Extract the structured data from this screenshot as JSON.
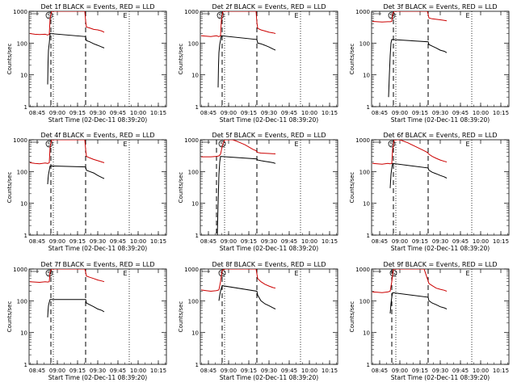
{
  "chart_data": {
    "type": "line",
    "x_tick_labels": [
      "08:45",
      "09:00",
      "09:15",
      "09:30",
      "09:45",
      "10:00",
      "10:15"
    ],
    "x_range_hours": [
      8.65,
      10.35
    ],
    "xlabel": "Start Time (02-Dec-11 08:39:20)",
    "ylabel": "Counts/sec",
    "y_scale": "log",
    "ylim": [
      1,
      1000
    ],
    "y_tick_labels": [
      "1",
      "10",
      "100",
      "1000"
    ],
    "grid": false,
    "colors": {
      "events": "#000000",
      "lld": "#cc0000",
      "axes": "#000000"
    },
    "markers": {
      "start_marker": "S",
      "end_marker": "E"
    },
    "panels": [
      {
        "title": "Det 1f BLACK = Events, RED = LLD",
        "markers_x": [
          8.9,
          9.84
        ],
        "vlines_dotted": [
          8.95,
          9.89
        ],
        "vlines_dashed": [
          8.92,
          9.35
        ],
        "lld": {
          "x": [
            8.66,
            8.72,
            8.78,
            8.85,
            8.88,
            8.9,
            8.91,
            8.93,
            8.95,
            9.34,
            9.35,
            9.36,
            9.4,
            9.45,
            9.5,
            9.55,
            9.58
          ],
          "y": [
            200,
            190,
            185,
            190,
            180,
            190,
            600,
            1000,
            1000,
            1000,
            500,
            320,
            300,
            270,
            260,
            240,
            220
          ]
        },
        "events": {
          "x": [
            8.88,
            8.885,
            8.89,
            8.9,
            8.91,
            9.35,
            9.36,
            9.4,
            9.45,
            9.5,
            9.55,
            9.58
          ],
          "y": [
            5,
            25,
            60,
            100,
            200,
            160,
            120,
            110,
            95,
            85,
            75,
            70
          ]
        }
      },
      {
        "title": "Det 2f BLACK = Events, RED = LLD",
        "markers_x": [
          8.9,
          9.84
        ],
        "vlines_dotted": [
          8.95,
          9.89
        ],
        "vlines_dashed": [
          8.92,
          9.35
        ],
        "lld": {
          "x": [
            8.66,
            8.72,
            8.78,
            8.85,
            8.88,
            8.9,
            8.91,
            8.93,
            8.95,
            9.34,
            9.35,
            9.36,
            9.4,
            9.45,
            9.5,
            9.55,
            9.58
          ],
          "y": [
            170,
            165,
            160,
            170,
            160,
            170,
            500,
            1000,
            1000,
            1000,
            450,
            290,
            260,
            240,
            220,
            210,
            200
          ]
        },
        "events": {
          "x": [
            8.87,
            8.875,
            8.88,
            8.89,
            8.91,
            9.35,
            9.36,
            9.4,
            9.45,
            9.5,
            9.55,
            9.58
          ],
          "y": [
            4,
            20,
            50,
            90,
            170,
            130,
            100,
            95,
            85,
            75,
            65,
            60
          ]
        }
      },
      {
        "title": "Det 3f BLACK = Events, RED = LLD",
        "markers_x": [
          8.9,
          9.84
        ],
        "vlines_dotted": [
          8.95,
          9.89
        ],
        "vlines_dashed": [
          8.92,
          9.35
        ],
        "lld": {
          "x": [
            8.66,
            8.72,
            8.78,
            8.85,
            8.88,
            8.9,
            8.91,
            8.93,
            8.95,
            9.34,
            9.35,
            9.36,
            9.4,
            9.45,
            9.5,
            9.55,
            9.58
          ],
          "y": [
            480,
            470,
            460,
            470,
            470,
            480,
            800,
            1000,
            1000,
            1000,
            800,
            620,
            580,
            560,
            540,
            520,
            500
          ]
        },
        "events": {
          "x": [
            8.86,
            8.87,
            8.88,
            8.89,
            8.9,
            9.35,
            9.36,
            9.4,
            9.45,
            9.5,
            9.55,
            9.58
          ],
          "y": [
            2,
            10,
            40,
            100,
            130,
            110,
            90,
            80,
            70,
            60,
            55,
            50
          ]
        }
      },
      {
        "title": "Det 4f BLACK = Events, RED = LLD",
        "markers_x": [
          8.9,
          9.84
        ],
        "vlines_dotted": [
          8.95,
          9.89
        ],
        "vlines_dashed": [
          8.92,
          9.35
        ],
        "lld": {
          "x": [
            8.66,
            8.72,
            8.78,
            8.85,
            8.88,
            8.9,
            8.91,
            8.93,
            8.95,
            9.34,
            9.35,
            9.36,
            9.4,
            9.45,
            9.5,
            9.55,
            9.58
          ],
          "y": [
            190,
            180,
            175,
            185,
            180,
            190,
            600,
            1000,
            1000,
            1000,
            500,
            300,
            270,
            240,
            220,
            200,
            190
          ]
        },
        "events": {
          "x": [
            8.88,
            8.885,
            8.89,
            8.9,
            8.91,
            9.35,
            9.36,
            9.4,
            9.45,
            9.5,
            9.55,
            9.58
          ],
          "y": [
            40,
            60,
            80,
            110,
            150,
            140,
            110,
            100,
            90,
            75,
            65,
            60
          ]
        }
      },
      {
        "title": "Det 5f BLACK = Events, RED = LLD",
        "markers_x": [
          8.92,
          9.84
        ],
        "vlines_dotted": [
          8.95,
          9.89
        ],
        "vlines_dashed": [
          8.85,
          9.35
        ],
        "lld": {
          "x": [
            8.66,
            8.72,
            8.78,
            8.85,
            8.88,
            8.9,
            8.92,
            8.95,
            9.0,
            9.05,
            9.1,
            9.2,
            9.3,
            9.34,
            9.36,
            9.4,
            9.5,
            9.58
          ],
          "y": [
            290,
            290,
            290,
            300,
            310,
            350,
            600,
            1000,
            1000,
            1000,
            900,
            700,
            500,
            450,
            400,
            380,
            370,
            360
          ]
        },
        "events": {
          "x": [
            8.86,
            8.87,
            8.88,
            8.89,
            8.9,
            9.35,
            9.36,
            9.4,
            9.45,
            9.5,
            9.55,
            9.58
          ],
          "y": [
            1,
            10,
            80,
            200,
            300,
            250,
            230,
            220,
            210,
            200,
            190,
            180
          ]
        }
      },
      {
        "title": "Det 6f BLACK = Events, RED = LLD",
        "markers_x": [
          8.9,
          9.84
        ],
        "vlines_dotted": [
          8.95,
          9.89
        ],
        "vlines_dashed": [
          8.92,
          9.35
        ],
        "lld": {
          "x": [
            8.66,
            8.72,
            8.78,
            8.85,
            8.88,
            8.9,
            8.91,
            8.93,
            8.95,
            9.0,
            9.1,
            9.2,
            9.3,
            9.34,
            9.36,
            9.4,
            9.45,
            9.5,
            9.55,
            9.58
          ],
          "y": [
            180,
            175,
            170,
            180,
            175,
            180,
            500,
            1000,
            1000,
            1000,
            800,
            600,
            450,
            400,
            350,
            300,
            260,
            230,
            210,
            200
          ]
        },
        "events": {
          "x": [
            8.88,
            8.885,
            8.89,
            8.9,
            8.91,
            9.35,
            9.36,
            9.4,
            9.45,
            9.5,
            9.55,
            9.58
          ],
          "y": [
            30,
            50,
            80,
            130,
            180,
            130,
            110,
            95,
            85,
            75,
            68,
            62
          ]
        }
      },
      {
        "title": "Det 7f BLACK = Events, RED = LLD",
        "markers_x": [
          8.9,
          9.84
        ],
        "vlines_dotted": [
          8.95,
          9.89
        ],
        "vlines_dashed": [
          8.92,
          9.35
        ],
        "lld": {
          "x": [
            8.66,
            8.72,
            8.78,
            8.85,
            8.88,
            8.9,
            8.91,
            8.93,
            8.95,
            9.34,
            9.35,
            9.36,
            9.4,
            9.45,
            9.5,
            9.55,
            9.58
          ],
          "y": [
            400,
            390,
            380,
            400,
            390,
            400,
            800,
            1000,
            1000,
            1000,
            800,
            600,
            550,
            500,
            450,
            420,
            400
          ]
        },
        "events": {
          "x": [
            8.88,
            8.885,
            8.89,
            8.9,
            8.91,
            9.35,
            9.36,
            9.4,
            9.45,
            9.5,
            9.55,
            9.58
          ],
          "y": [
            30,
            50,
            70,
            90,
            110,
            110,
            85,
            75,
            65,
            55,
            50,
            45
          ]
        }
      },
      {
        "title": "Det 8f BLACK = Events, RED = LLD",
        "markers_x": [
          8.92,
          9.84
        ],
        "vlines_dotted": [
          8.95,
          9.89
        ],
        "vlines_dashed": [
          8.92,
          9.35
        ],
        "lld": {
          "x": [
            8.66,
            8.72,
            8.78,
            8.85,
            8.88,
            8.9,
            8.92,
            8.95,
            9.34,
            9.35,
            9.36,
            9.4,
            9.45,
            9.5,
            9.55,
            9.58
          ],
          "y": [
            220,
            210,
            200,
            210,
            220,
            400,
            900,
            1000,
            1000,
            700,
            500,
            400,
            330,
            290,
            260,
            250
          ]
        },
        "events": {
          "x": [
            8.88,
            8.89,
            8.9,
            8.92,
            9.35,
            9.36,
            9.4,
            9.45,
            9.5,
            9.55,
            9.58
          ],
          "y": [
            100,
            150,
            200,
            300,
            200,
            150,
            100,
            80,
            70,
            60,
            55
          ]
        }
      },
      {
        "title": "Det 9f BLACK = Events, RED = LLD",
        "markers_x": [
          8.92,
          9.84
        ],
        "vlines_dotted": [
          8.95,
          9.89
        ],
        "vlines_dashed": [
          8.9,
          9.35
        ],
        "lld": {
          "x": [
            8.66,
            8.72,
            8.78,
            8.85,
            8.88,
            8.9,
            8.92,
            8.95,
            9.3,
            9.34,
            9.36,
            9.4,
            9.45,
            9.5,
            9.55,
            9.58
          ],
          "y": [
            190,
            185,
            180,
            190,
            200,
            400,
            1000,
            1000,
            1000,
            500,
            350,
            300,
            250,
            230,
            215,
            200
          ]
        },
        "events": {
          "x": [
            8.88,
            8.89,
            8.9,
            8.91,
            9.35,
            9.36,
            9.4,
            9.45,
            9.5,
            9.55,
            9.58
          ],
          "y": [
            40,
            80,
            130,
            180,
            130,
            100,
            85,
            75,
            65,
            60,
            55
          ]
        }
      }
    ]
  }
}
